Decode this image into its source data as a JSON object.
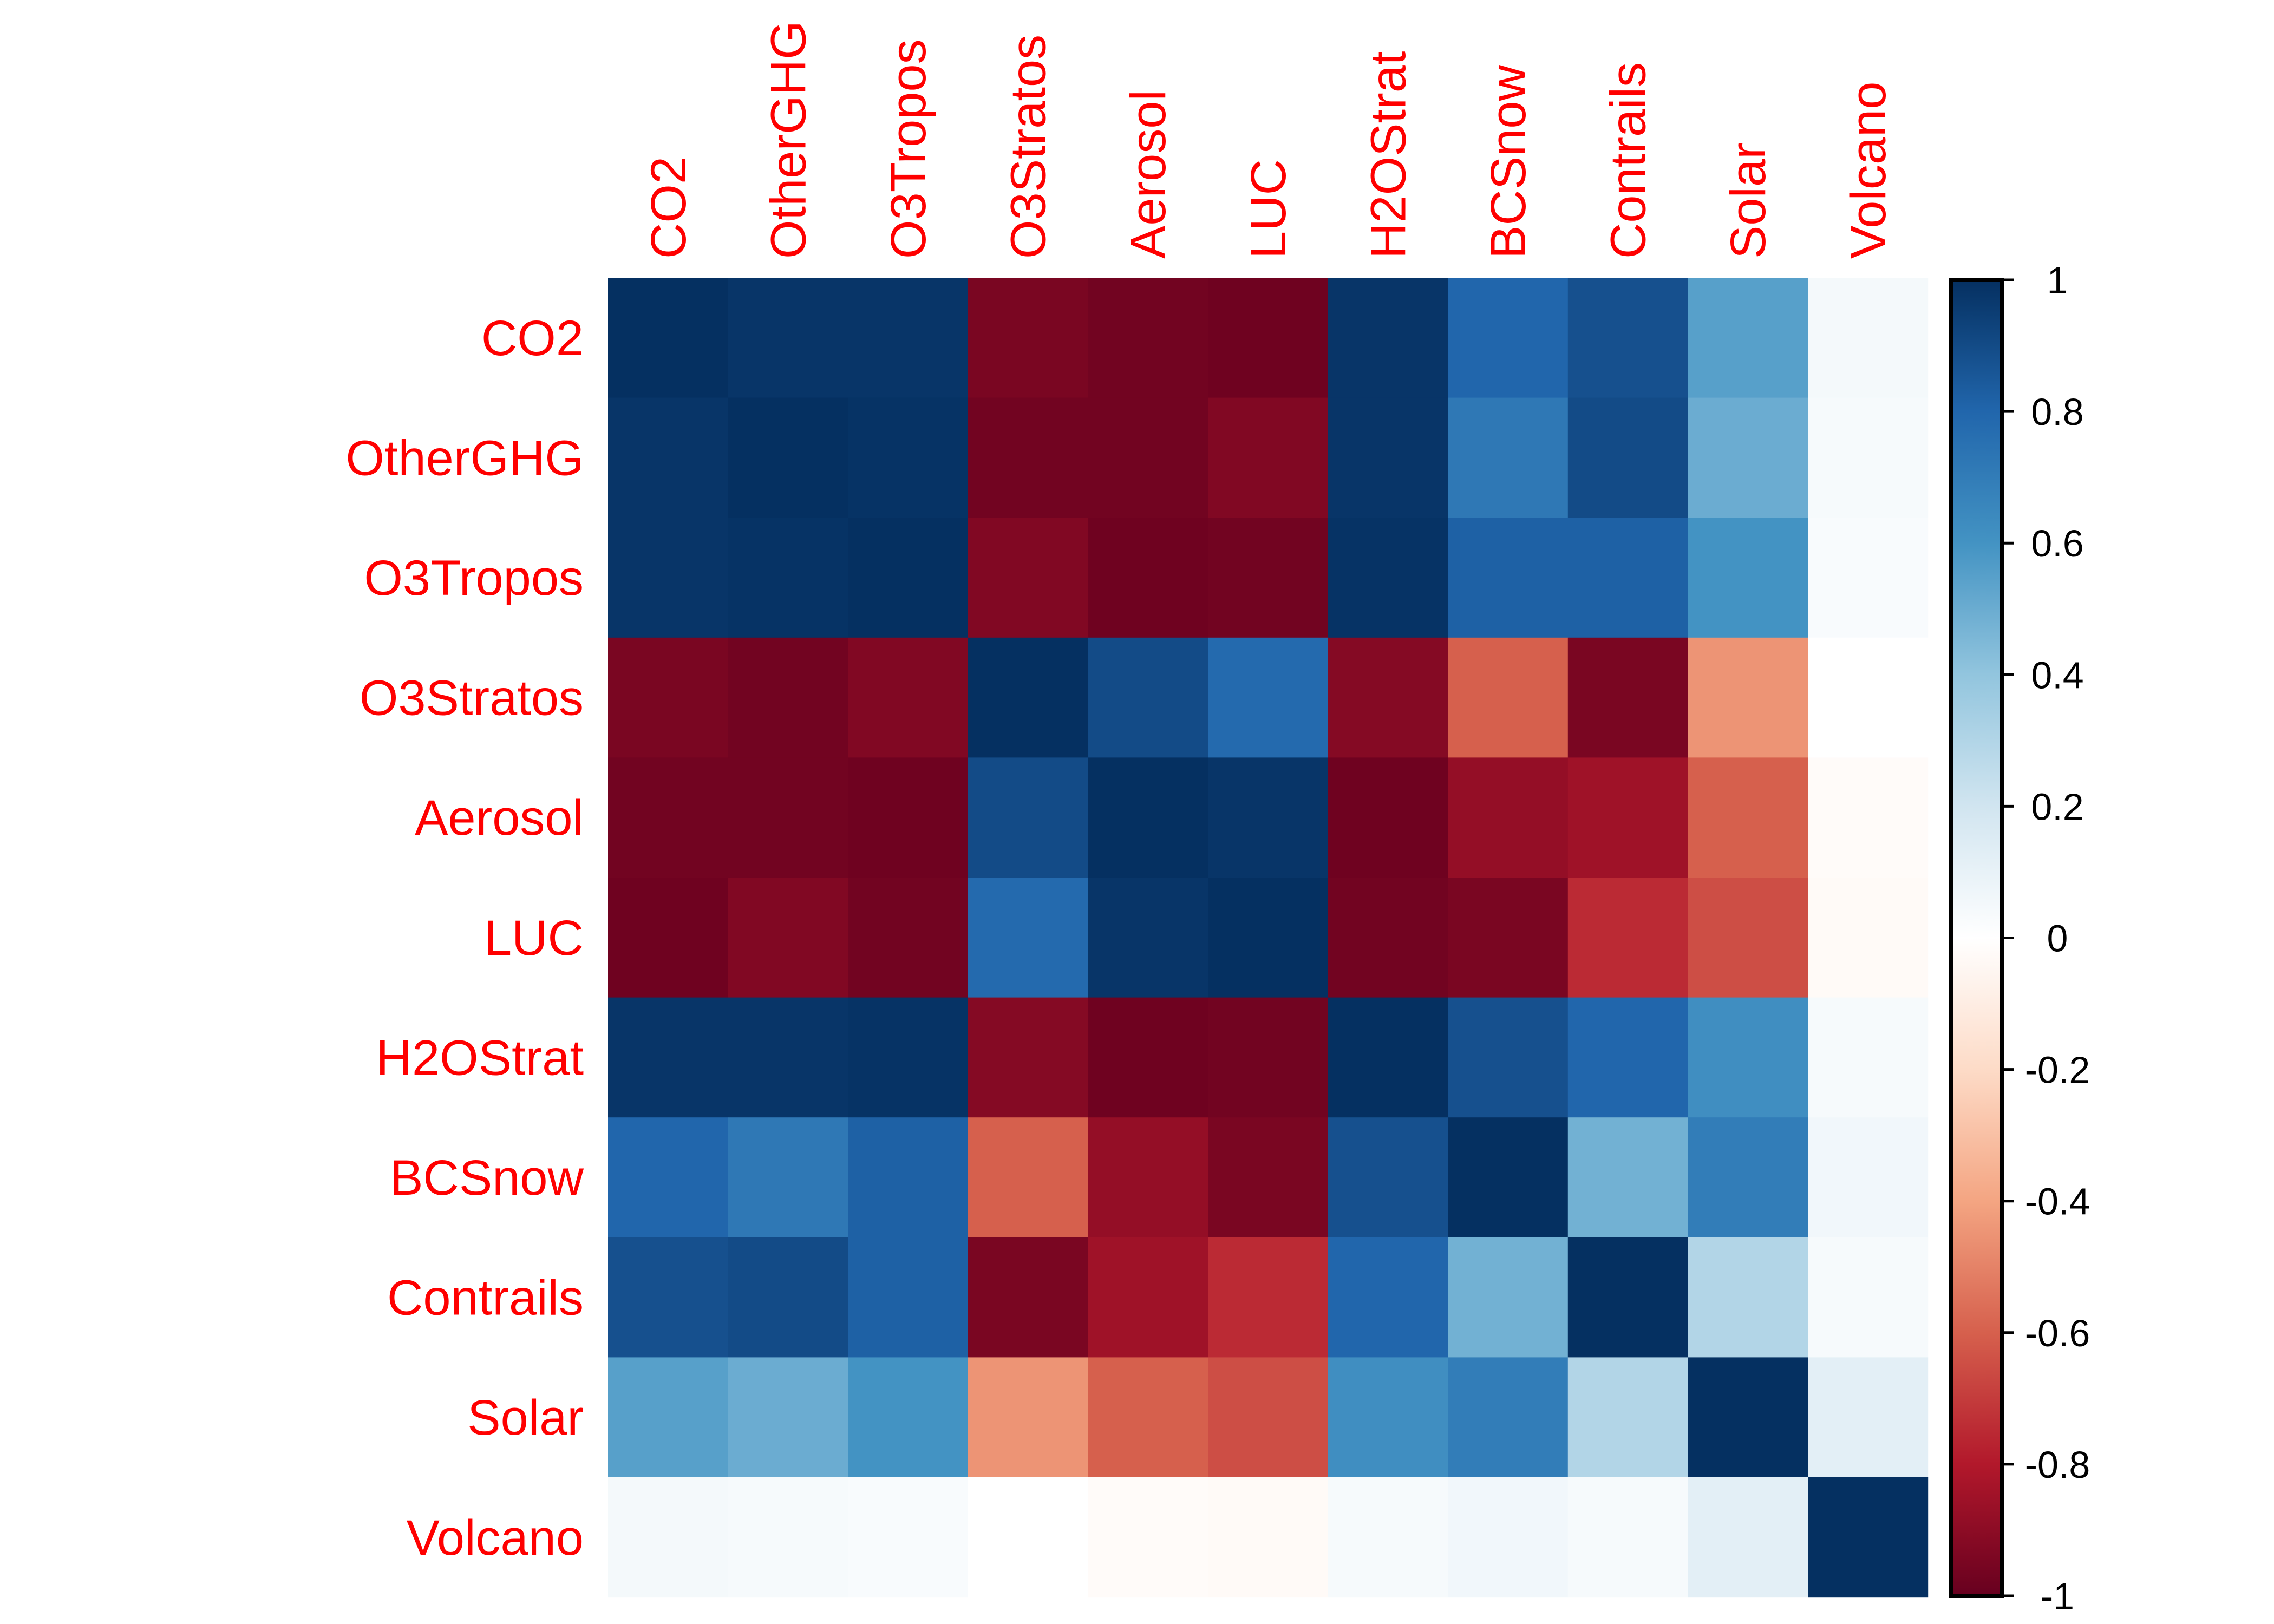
{
  "chart_data": {
    "type": "heatmap",
    "title": "",
    "labels": [
      "CO2",
      "OtherGHG",
      "O3Tropos",
      "O3Stratos",
      "Aerosol",
      "LUC",
      "H2OStrat",
      "BCSnow",
      "Contrails",
      "Solar",
      "Volcano"
    ],
    "values": [
      [
        1.0,
        0.98,
        0.98,
        -0.95,
        -0.97,
        -0.98,
        0.98,
        0.8,
        0.88,
        0.55,
        0.05
      ],
      [
        0.98,
        1.0,
        0.99,
        -0.97,
        -0.97,
        -0.93,
        0.98,
        0.72,
        0.9,
        0.5,
        0.04
      ],
      [
        0.98,
        0.99,
        1.0,
        -0.93,
        -0.98,
        -0.97,
        0.99,
        0.82,
        0.82,
        0.6,
        0.03
      ],
      [
        -0.95,
        -0.97,
        -0.93,
        1.0,
        0.9,
        0.78,
        -0.92,
        -0.6,
        -0.95,
        -0.45,
        0.0
      ],
      [
        -0.97,
        -0.97,
        -0.98,
        0.9,
        1.0,
        0.98,
        -0.98,
        -0.88,
        -0.85,
        -0.6,
        -0.02
      ],
      [
        -0.98,
        -0.93,
        -0.97,
        0.78,
        0.98,
        1.0,
        -0.97,
        -0.95,
        -0.75,
        -0.65,
        -0.03
      ],
      [
        0.98,
        0.98,
        0.99,
        -0.92,
        -0.98,
        -0.97,
        1.0,
        0.88,
        0.8,
        0.62,
        0.04
      ],
      [
        0.8,
        0.72,
        0.82,
        -0.6,
        -0.88,
        -0.95,
        0.88,
        1.0,
        0.48,
        0.7,
        0.06
      ],
      [
        0.88,
        0.9,
        0.82,
        -0.95,
        -0.85,
        -0.75,
        0.8,
        0.48,
        1.0,
        0.3,
        0.04
      ],
      [
        0.55,
        0.5,
        0.6,
        -0.45,
        -0.6,
        -0.65,
        0.62,
        0.7,
        0.3,
        1.0,
        0.12
      ],
      [
        0.05,
        0.04,
        0.03,
        0.0,
        -0.02,
        -0.03,
        0.04,
        0.06,
        0.04,
        0.12,
        1.0
      ]
    ],
    "colorbar": {
      "range": [
        -1,
        1
      ],
      "ticks": [
        "1",
        "0.8",
        "0.6",
        "0.4",
        "0.2",
        "0",
        "-0.2",
        "-0.4",
        "-0.6",
        "-0.8",
        "-1"
      ],
      "tick_values": [
        1,
        0.8,
        0.6,
        0.4,
        0.2,
        0,
        -0.2,
        -0.4,
        -0.6,
        -0.8,
        -1
      ]
    },
    "colors": [
      "#67001F",
      "#B2182B",
      "#D6604D",
      "#F4A582",
      "#FDDBC7",
      "#FFFFFF",
      "#D1E5F0",
      "#92C5DE",
      "#4393C3",
      "#2166AC",
      "#053061"
    ],
    "label_color": "#FF0000",
    "grid": false
  }
}
